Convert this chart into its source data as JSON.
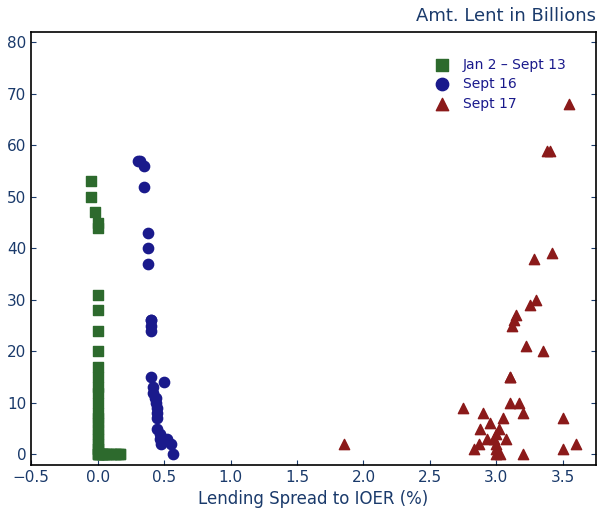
{
  "title": "Amt. Lent in Billions",
  "xlabel": "Lending Spread to IOER (%)",
  "xlim": [
    -0.5,
    3.75
  ],
  "ylim": [
    -2,
    82
  ],
  "xticks": [
    -0.5,
    0,
    0.5,
    1,
    1.5,
    2,
    2.5,
    3,
    3.5
  ],
  "yticks": [
    0,
    10,
    20,
    30,
    40,
    50,
    60,
    70,
    80
  ],
  "green_x": [
    -0.05,
    -0.05,
    -0.02,
    0.0,
    0.0,
    0.0,
    0.0,
    0.0,
    0.0,
    0.0,
    0.0,
    0.0,
    0.0,
    0.0,
    0.0,
    0.0,
    0.0,
    0.0,
    0.0,
    0.0,
    0.0,
    0.0,
    0.0,
    0.0,
    0.0,
    0.0,
    0.01,
    0.02,
    0.03,
    0.03,
    0.05,
    0.05,
    0.06,
    0.07,
    0.08,
    0.1,
    0.13,
    0.14,
    0.15,
    0.17,
    0.17
  ],
  "green_y": [
    53,
    50,
    47,
    45,
    44,
    31,
    28,
    24,
    20,
    17,
    15,
    13,
    12,
    10,
    8,
    7,
    6,
    5,
    4,
    3,
    2,
    1,
    1,
    0,
    0,
    0,
    0,
    0,
    0,
    0,
    0,
    0,
    0,
    0,
    0,
    0,
    0,
    0,
    0,
    0,
    0
  ],
  "blue_x": [
    0.3,
    0.32,
    0.35,
    0.35,
    0.38,
    0.38,
    0.38,
    0.4,
    0.4,
    0.4,
    0.4,
    0.4,
    0.42,
    0.42,
    0.43,
    0.44,
    0.44,
    0.45,
    0.45,
    0.45,
    0.45,
    0.47,
    0.47,
    0.48,
    0.5,
    0.52,
    0.55,
    0.57
  ],
  "blue_y": [
    57,
    57,
    56,
    52,
    43,
    40,
    37,
    26,
    26,
    25,
    24,
    15,
    13,
    12,
    11,
    11,
    10,
    9,
    8,
    7,
    5,
    4,
    3,
    2,
    14,
    3,
    2,
    0
  ],
  "red_x": [
    1.85,
    2.75,
    2.83,
    2.87,
    2.88,
    2.9,
    2.93,
    2.95,
    2.98,
    3.0,
    3.0,
    3.0,
    3.0,
    3.02,
    3.03,
    3.05,
    3.07,
    3.1,
    3.1,
    3.1,
    3.12,
    3.13,
    3.15,
    3.17,
    3.2,
    3.2,
    3.22,
    3.25,
    3.28,
    3.3,
    3.35,
    3.38,
    3.4,
    3.42,
    3.5,
    3.5,
    3.55,
    3.6
  ],
  "red_y": [
    2,
    9,
    1,
    2,
    5,
    8,
    3,
    6,
    3,
    4,
    2,
    1,
    0,
    5,
    0,
    7,
    3,
    15,
    15,
    10,
    25,
    26,
    27,
    10,
    0,
    8,
    21,
    29,
    38,
    30,
    20,
    59,
    59,
    39,
    7,
    1,
    68,
    2
  ],
  "green_color": "#2d6a2d",
  "blue_color": "#1a1a8c",
  "red_color": "#8b1a1a",
  "bg_color": "#ffffff",
  "title_fontsize": 13,
  "label_fontsize": 12,
  "tick_fontsize": 11,
  "tick_color": "#1a3a6b",
  "legend_label_green": "Jan 2 – Sept 13",
  "legend_label_blue": "Sept 16",
  "legend_label_red": "Sept 17"
}
